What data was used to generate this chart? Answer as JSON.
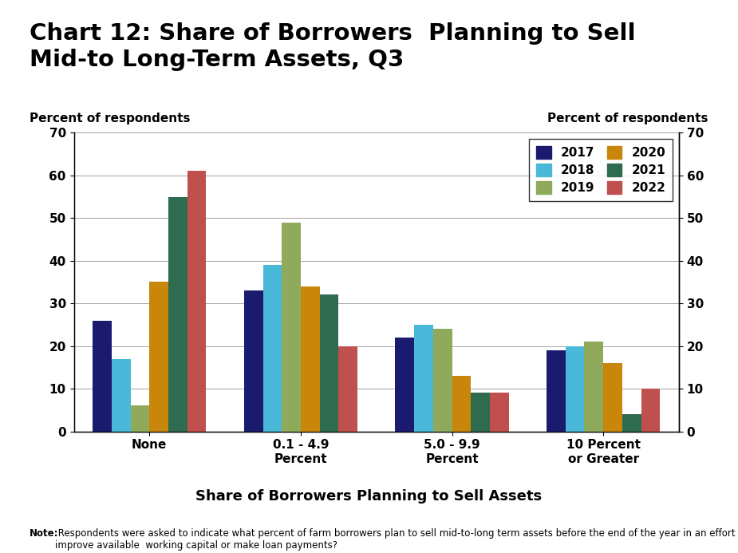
{
  "title": "Chart 12: Share of Borrowers  Planning to Sell\nMid-to Long-Term Assets, Q3",
  "xlabel": "Share of Borrowers Planning to Sell Assets",
  "ylabel_left": "Percent of respondents",
  "ylabel_right": "Percent of respondents",
  "categories": [
    "None",
    "0.1 - 4.9\nPercent",
    "5.0 - 9.9\nPercent",
    "10 Percent\nor Greater"
  ],
  "years": [
    "2017",
    "2018",
    "2019",
    "2020",
    "2021",
    "2022"
  ],
  "colors": [
    "#1a1a6e",
    "#4ab8d8",
    "#8faa5b",
    "#c8860a",
    "#2e6b4f",
    "#c0504d"
  ],
  "data": {
    "None": [
      26,
      17,
      6,
      35,
      55,
      61
    ],
    "0.1 - 4.9\nPercent": [
      33,
      39,
      49,
      34,
      32,
      20
    ],
    "5.0 - 9.9\nPercent": [
      22,
      25,
      24,
      13,
      9,
      9
    ],
    "10 Percent\nor Greater": [
      19,
      20,
      21,
      16,
      4,
      10
    ]
  },
  "ylim": [
    0,
    70
  ],
  "yticks": [
    0,
    10,
    20,
    30,
    40,
    50,
    60,
    70
  ],
  "note_bold": "Note:",
  "note_regular": " Respondents were asked to indicate what percent of farm borrowers plan to sell mid-to-long term assets before the end of the year in an effort to\nimprove available  working capital or make loan payments?",
  "background_color": "#ffffff",
  "title_fontsize": 21,
  "axis_label_fontsize": 11,
  "tick_fontsize": 11,
  "legend_fontsize": 11,
  "note_fontsize": 8.5
}
